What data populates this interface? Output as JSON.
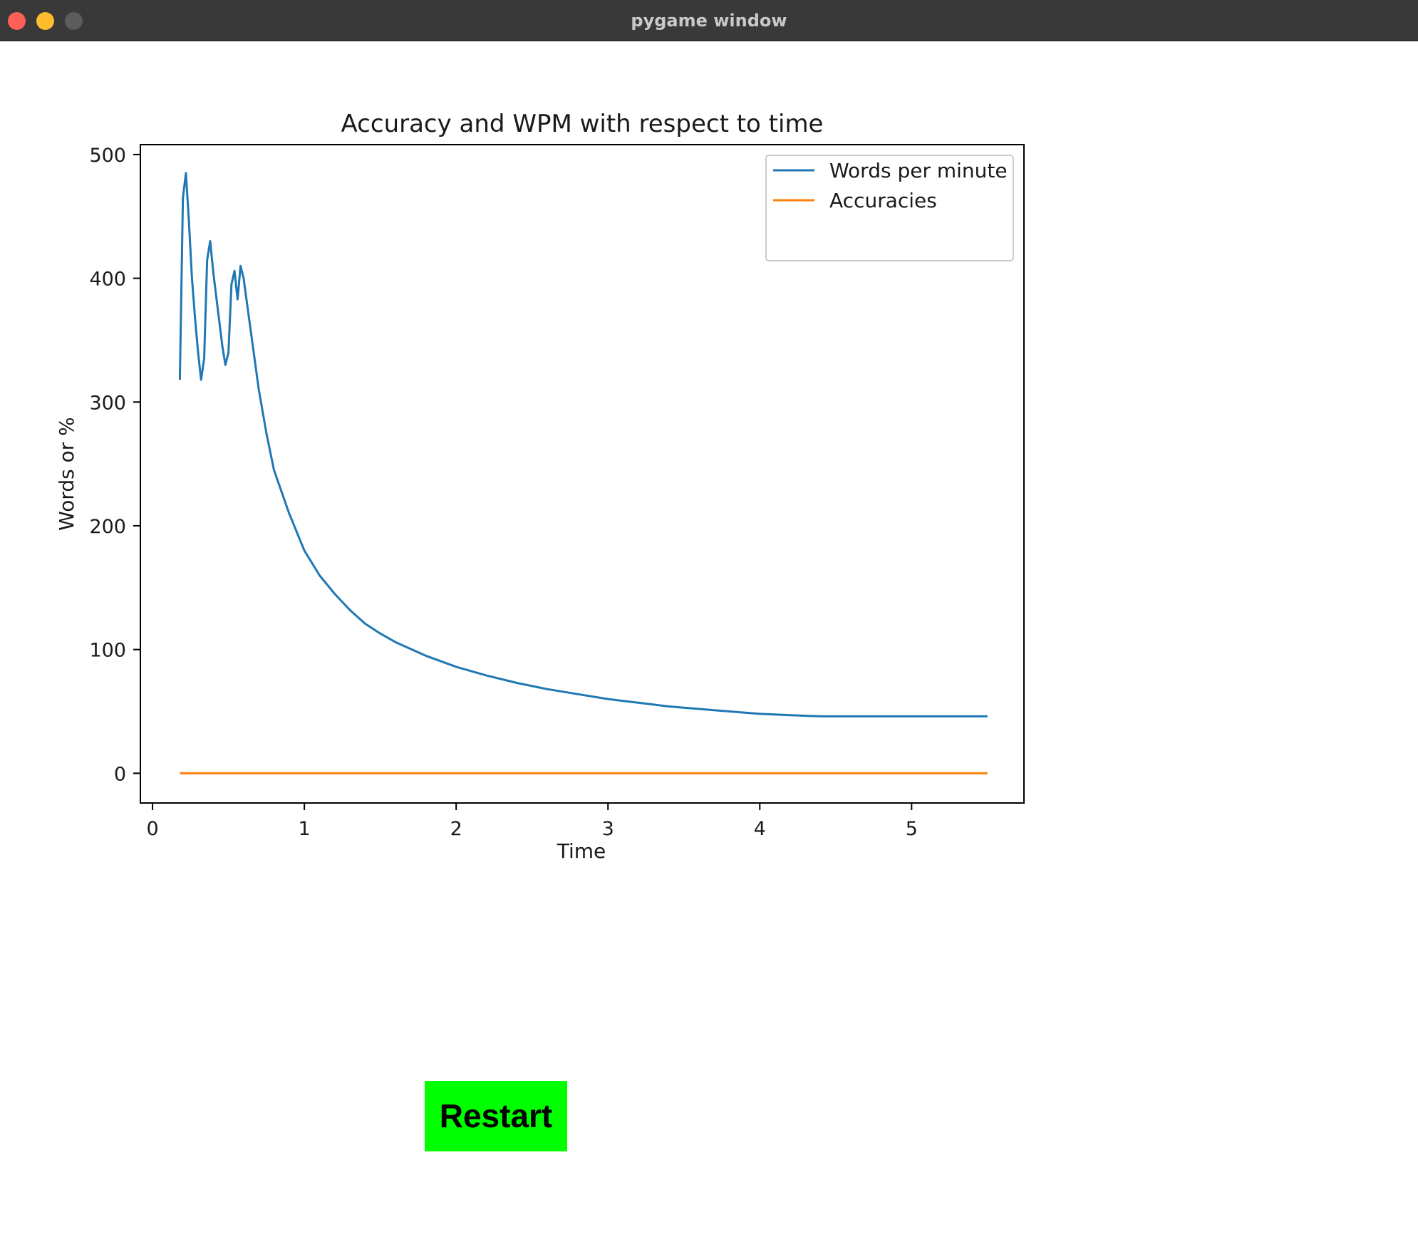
{
  "window": {
    "title": "pygame window"
  },
  "colors": {
    "titlebar": "#393939",
    "close": "#ff5f57",
    "minimize": "#febc2e",
    "zoom": "#5c5c5c",
    "restart_bg": "#00ff00",
    "wpm_line": "#1f77b4",
    "accuracy_line": "#ff7f0e"
  },
  "restart_button": {
    "label": "Restart"
  },
  "chart_data": {
    "type": "line",
    "title": "Accuracy and WPM with respect to time",
    "xlabel": "Time",
    "ylabel": "Words or %",
    "xlim": [
      -0.08,
      5.74
    ],
    "ylim": [
      -24,
      508
    ],
    "xticks": [
      0,
      1,
      2,
      3,
      4,
      5
    ],
    "yticks": [
      0,
      100,
      200,
      300,
      400,
      500
    ],
    "grid": false,
    "legend_position": "top-right",
    "series": [
      {
        "name": "Words per minute",
        "color": "#1f77b4",
        "x": [
          0.18,
          0.2,
          0.22,
          0.24,
          0.26,
          0.28,
          0.3,
          0.32,
          0.34,
          0.36,
          0.38,
          0.4,
          0.42,
          0.44,
          0.46,
          0.48,
          0.5,
          0.52,
          0.54,
          0.56,
          0.58,
          0.6,
          0.62,
          0.65,
          0.7,
          0.75,
          0.8,
          0.9,
          1.0,
          1.1,
          1.2,
          1.3,
          1.4,
          1.5,
          1.6,
          1.8,
          2.0,
          2.2,
          2.4,
          2.6,
          2.8,
          3.0,
          3.2,
          3.4,
          3.6,
          3.8,
          4.0,
          4.2,
          4.4,
          4.6,
          4.8,
          5.0,
          5.2,
          5.5
        ],
        "y": [
          318,
          465,
          485,
          445,
          400,
          368,
          340,
          318,
          335,
          415,
          430,
          405,
          385,
          365,
          345,
          330,
          340,
          395,
          406,
          383,
          410,
          400,
          382,
          355,
          310,
          275,
          245,
          210,
          180,
          160,
          145,
          132,
          121,
          113,
          106,
          95,
          86,
          79,
          73,
          68,
          64,
          60,
          57,
          54,
          52,
          50,
          48,
          47,
          46,
          46,
          46,
          46,
          46,
          46
        ]
      },
      {
        "name": "Accuracies",
        "color": "#ff7f0e",
        "x": [
          0.18,
          5.5
        ],
        "y": [
          0,
          0
        ]
      }
    ]
  }
}
